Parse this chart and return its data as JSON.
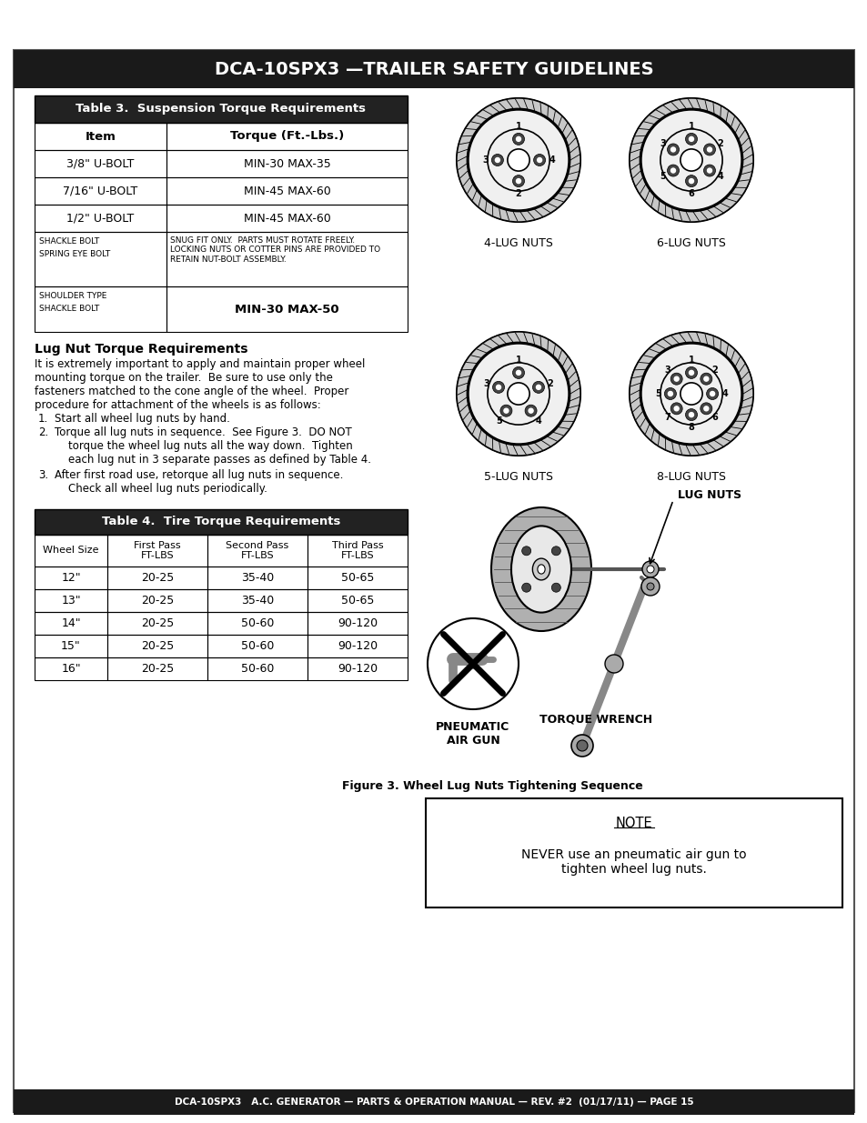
{
  "title": "DCA-10SPX3 —TRAILER SAFETY GUIDELINES",
  "footer": "DCA-10SPX3   A.C. GENERATOR — PARTS & OPERATION MANUAL — REV. #2  (01/17/11) — PAGE 15",
  "table3_title": "Table 3.  Suspension Torque Requirements",
  "table4_title": "Table 4.  Tire Torque Requirements",
  "table4_headers": [
    "Wheel Size",
    "First Pass\nFT-LBS",
    "Second Pass\nFT-LBS",
    "Third Pass\nFT-LBS"
  ],
  "table4_rows": [
    [
      "12\"",
      "20-25",
      "35-40",
      "50-65"
    ],
    [
      "13\"",
      "20-25",
      "35-40",
      "50-65"
    ],
    [
      "14\"",
      "20-25",
      "50-60",
      "90-120"
    ],
    [
      "15\"",
      "20-25",
      "50-60",
      "90-120"
    ],
    [
      "16\"",
      "20-25",
      "50-60",
      "90-120"
    ]
  ],
  "lug_section_title": "Lug Nut Torque Requirements",
  "lug_section_body": "It is extremely important to apply and maintain proper wheel mounting torque on the trailer.  Be sure to use only the fasteners matched to the cone angle of the wheel.  Proper procedure for attachment of the wheels is as follows:",
  "steps": [
    "Start all wheel lug nuts by hand.",
    "Torque all lug nuts in sequence.  See Figure 3.  DO NOT torque the wheel lug nuts all the way down.  Tighten each lug nut in 3 separate passes as defined by Table 4.",
    "After first road use, retorque all lug nuts in sequence.\n    Check all wheel lug nuts periodically."
  ],
  "figure_caption": "Figure 3. Wheel Lug Nuts Tightening Sequence",
  "note_title": "NOTE",
  "note_body": "NEVER use an pneumatic air gun to\ntighten wheel lug nuts.",
  "wheels": [
    {
      "label": "4-LUG NUTS",
      "n": 4,
      "order": [
        1,
        3,
        2,
        4
      ],
      "start_angle": 90
    },
    {
      "label": "6-LUG NUTS",
      "n": 6,
      "order": [
        1,
        3,
        5,
        6,
        4,
        2
      ],
      "start_angle": 90
    },
    {
      "label": "5-LUG NUTS",
      "n": 5,
      "order": [
        1,
        3,
        5,
        4,
        2
      ],
      "start_angle": 90
    },
    {
      "label": "8-LUG NUTS",
      "n": 8,
      "order": [
        1,
        3,
        5,
        7,
        8,
        6,
        4,
        2
      ],
      "start_angle": 90
    }
  ],
  "bg_color": "#ffffff"
}
